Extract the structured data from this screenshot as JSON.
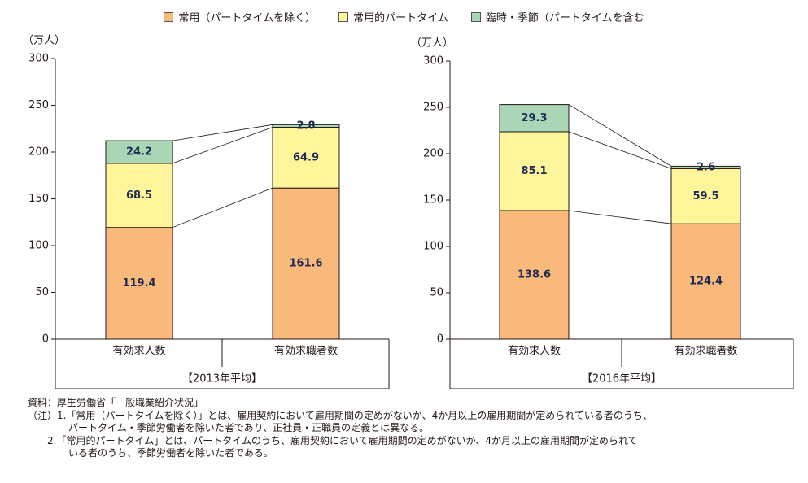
{
  "legend": [
    {
      "label": "常用（パートタイムを除く）",
      "color": "#F8B97A"
    },
    {
      "label": "常用的パートタイム",
      "color": "#FFF59A"
    },
    {
      "label": "臨時・季節（パートタイムを含む",
      "color": "#A9D7B5"
    }
  ],
  "chart_data": [
    {
      "type": "bar",
      "stacked": true,
      "unit_label": "（万人）",
      "ylim": [
        0,
        300
      ],
      "yticks": [
        "0",
        "50",
        "100",
        "150",
        "200",
        "250",
        "300"
      ],
      "categories": [
        "有効求人数",
        "有効求職者数"
      ],
      "period_label": "【2013年平均】",
      "series": [
        {
          "name": "常用（パートタイムを除く）",
          "values": [
            119.4,
            161.6
          ],
          "labels": [
            "119.4",
            "161.6"
          ]
        },
        {
          "name": "常用的パートタイム",
          "values": [
            68.5,
            64.9
          ],
          "labels": [
            "68.5",
            "64.9"
          ]
        },
        {
          "name": "臨時・季節（パートタイムを含む",
          "values": [
            24.2,
            2.8
          ],
          "labels": [
            "24.2",
            "2.8"
          ]
        }
      ]
    },
    {
      "type": "bar",
      "stacked": true,
      "unit_label": "（万人）",
      "ylim": [
        0,
        300
      ],
      "yticks": [
        "0",
        "50",
        "100",
        "150",
        "200",
        "250",
        "300"
      ],
      "categories": [
        "有効求人数",
        "有効求職者数"
      ],
      "period_label": "【2016年平均】",
      "series": [
        {
          "name": "常用（パートタイムを除く）",
          "values": [
            138.6,
            124.4
          ],
          "labels": [
            "138.6",
            "124.4"
          ]
        },
        {
          "name": "常用的パートタイム",
          "values": [
            85.1,
            59.5
          ],
          "labels": [
            "85.1",
            "59.5"
          ]
        },
        {
          "name": "臨時・季節（パートタイムを含む",
          "values": [
            29.3,
            2.6
          ],
          "labels": [
            "29.3",
            "2.6"
          ]
        }
      ]
    }
  ],
  "notes": {
    "source": "資料：厚生労働省「一般職業紹介状況」",
    "note1_line1": "（注）1.「常用（パートタイムを除く）」とは、雇用契約において雇用期間の定めがないか、4か月以上の雇用期間が定められている者のうち、",
    "note1_line2": "パートタイム・季節労働者を除いた者であり、正社員・正職員の定義とは異なる。",
    "note2_line1": "2.「常用的パートタイム」とは、パートタイムのうち、雇用契約において雇用期間の定めがないか、4か月以上の雇用期間が定められて",
    "note2_line2": "いる者のうち、季節労働者を除いた者である。"
  }
}
